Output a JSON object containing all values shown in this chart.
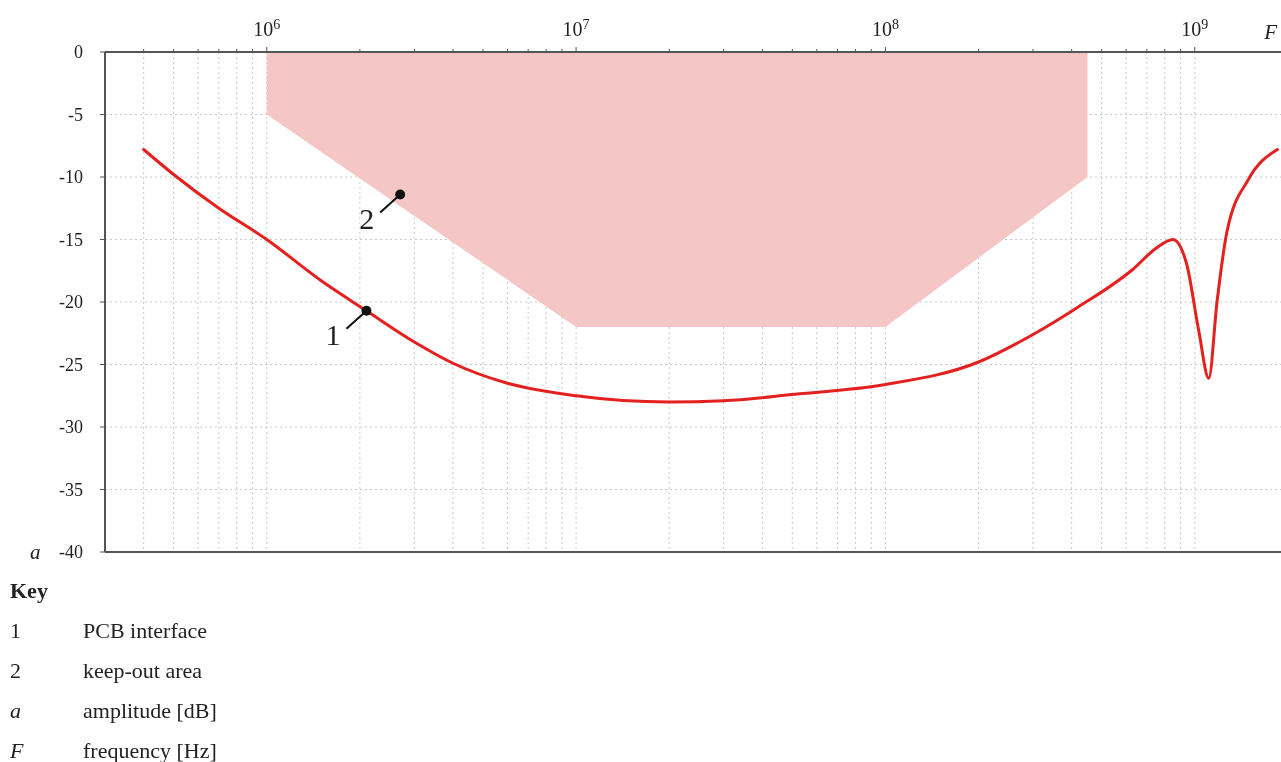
{
  "chart_data": {
    "type": "line",
    "xlabel": "F",
    "ylabel": "a",
    "log": "x",
    "grid": true,
    "xlim": [
      300000,
      1900000000
    ],
    "ylim": [
      -40,
      0
    ],
    "xticks": [
      {
        "value": 400000,
        "label": null
      },
      {
        "value": 500000,
        "label": null
      },
      {
        "value": 600000,
        "label": null
      },
      {
        "value": 700000,
        "label": null
      },
      {
        "value": 800000,
        "label": null
      },
      {
        "value": 900000,
        "label": null
      },
      {
        "value": 1000000,
        "label": "10$^{6}$"
      },
      {
        "value": 2000000,
        "label": null
      },
      {
        "value": 3000000,
        "label": null
      },
      {
        "value": 4000000,
        "label": null
      },
      {
        "value": 5000000,
        "label": null
      },
      {
        "value": 6000000,
        "label": null
      },
      {
        "value": 7000000,
        "label": null
      },
      {
        "value": 8000000,
        "label": null
      },
      {
        "value": 9000000,
        "label": null
      },
      {
        "value": 10000000,
        "label": "10$^{7}$"
      },
      {
        "value": 20000000,
        "label": null
      },
      {
        "value": 30000000,
        "label": null
      },
      {
        "value": 40000000,
        "label": null
      },
      {
        "value": 50000000,
        "label": null
      },
      {
        "value": 60000000,
        "label": null
      },
      {
        "value": 70000000,
        "label": null
      },
      {
        "value": 80000000,
        "label": null
      },
      {
        "value": 90000000,
        "label": null
      },
      {
        "value": 100000000,
        "label": "10$^{8}$"
      },
      {
        "value": 200000000,
        "label": null
      },
      {
        "value": 300000000,
        "label": null
      },
      {
        "value": 400000000,
        "label": null
      },
      {
        "value": 500000000,
        "label": null
      },
      {
        "value": 600000000,
        "label": null
      },
      {
        "value": 700000000,
        "label": null
      },
      {
        "value": 800000000,
        "label": null
      },
      {
        "value": 900000000,
        "label": null
      },
      {
        "value": 1000000000,
        "label": "10$^{9}$"
      }
    ],
    "yticks": [
      0,
      -5,
      -10,
      -15,
      -20,
      -25,
      -30,
      -35,
      -40
    ],
    "series": [
      {
        "type": "area",
        "color": "#f5c6c6",
        "x": [
          1000000,
          1000000,
          10000000,
          100000000,
          450000000,
          450000000
        ],
        "values": [
          0,
          -5,
          -22,
          -22,
          -10,
          0
        ]
      },
      {
        "color": "#e3211f",
        "x": [
          400000,
          500000,
          700000,
          1000000,
          1500000,
          2100000,
          3000000,
          4000000,
          6000000,
          10000000,
          20000000,
          30000000,
          50000000,
          100000000,
          200000000,
          300000000,
          420000000,
          630000000,
          750000000,
          850000000,
          940000000,
          1030000000,
          1110000000,
          1180000000,
          1270000000,
          1490000000,
          1850000000
        ],
        "values": [
          -7.8,
          -9.8,
          -12.5,
          -15.0,
          -18.3,
          -20.7,
          -23.2,
          -24.9,
          -26.5,
          -27.5,
          -28.0,
          -27.9,
          -27.4,
          -26.6,
          -24.8,
          -22.6,
          -20.4,
          -17.4,
          -15.7,
          -15.0,
          -16.9,
          -22.3,
          -26.1,
          -20.0,
          -14.4,
          -10.2,
          -7.8
        ]
      }
    ],
    "annotations": [
      {
        "text": "1",
        "x": 2100000,
        "y": -20.7
      },
      {
        "text": "2",
        "x": 2700000,
        "y": -11.4
      },
      "Key",
      "1 PCB interface",
      "2 keep-out area",
      "a amplitude [dB]",
      "F frequency [Hz]"
    ]
  }
}
